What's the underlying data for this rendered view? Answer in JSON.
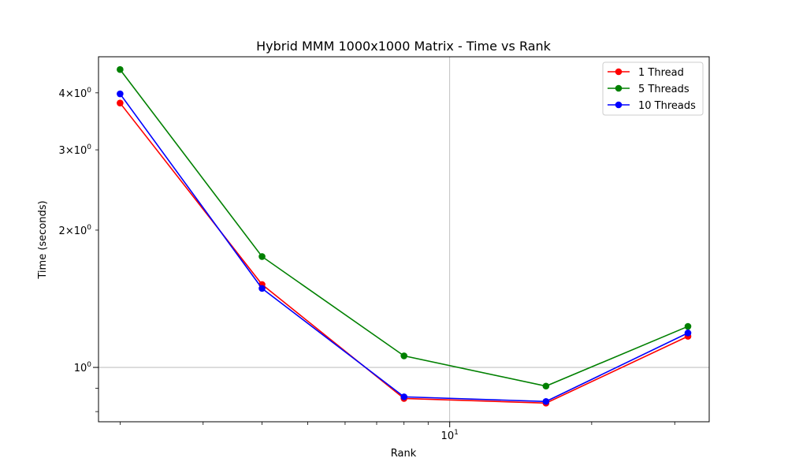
{
  "chart_data": {
    "type": "line",
    "title": "Hybrid MMM 1000x1000 Matrix - Time vs Rank",
    "xlabel": "Rank",
    "ylabel": "Time (seconds)",
    "xscale": "log",
    "yscale": "log",
    "xlim": [
      1.8,
      35.5
    ],
    "ylim": [
      0.76,
      4.8
    ],
    "grid": "major",
    "legend_position": "top-right",
    "x": [
      2,
      4,
      8,
      16,
      32
    ],
    "x_tick_labels": [
      {
        "value": 10,
        "label": "10",
        "sup": "1"
      }
    ],
    "y_tick_labels": [
      {
        "value": 1,
        "label": "10",
        "sup": "0"
      },
      {
        "value": 2,
        "label": "2×10",
        "sup": "0"
      },
      {
        "value": 3,
        "label": "3×10",
        "sup": "0"
      },
      {
        "value": 4,
        "label": "4×10",
        "sup": "0"
      }
    ],
    "series": [
      {
        "name": "1 Thread",
        "color": "#ff0000",
        "values": [
          3.8,
          1.52,
          0.855,
          0.835,
          1.17
        ]
      },
      {
        "name": "5 Threads",
        "color": "#008000",
        "values": [
          4.5,
          1.75,
          1.06,
          0.91,
          1.23
        ]
      },
      {
        "name": "10 Threads",
        "color": "#0000ff",
        "values": [
          3.98,
          1.49,
          0.862,
          0.842,
          1.19
        ]
      }
    ]
  }
}
